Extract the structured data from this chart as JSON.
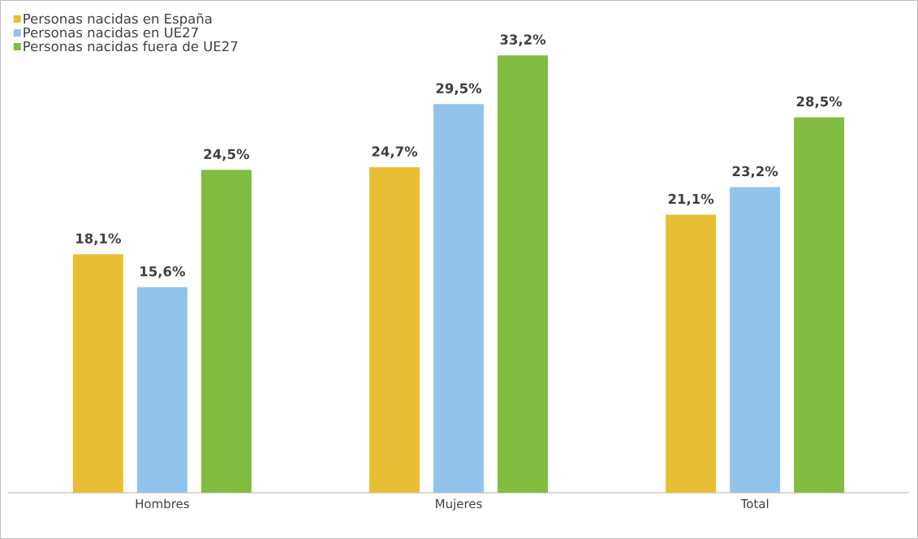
{
  "chart_data": {
    "type": "bar",
    "categories": [
      "Hombres",
      "Mujeres",
      "Total"
    ],
    "series": [
      {
        "name": "Personas nacidas en España",
        "color": "#e8be35",
        "values": [
          18.1,
          24.7,
          21.1
        ],
        "value_labels": [
          "18,1%",
          "24,7%",
          "21,1%"
        ]
      },
      {
        "name": "Personas nacidas en UE27",
        "color": "#92c3ea",
        "values": [
          15.6,
          29.5,
          23.2
        ],
        "value_labels": [
          "15,6%",
          "29,5%",
          "23,2%"
        ]
      },
      {
        "name": "Personas nacidas fuera de UE27",
        "color": "#82bc41",
        "values": [
          24.5,
          33.2,
          28.5
        ],
        "value_labels": [
          "24,5%",
          "33,2%",
          "28,5%"
        ]
      }
    ],
    "legend": "top left"
  }
}
